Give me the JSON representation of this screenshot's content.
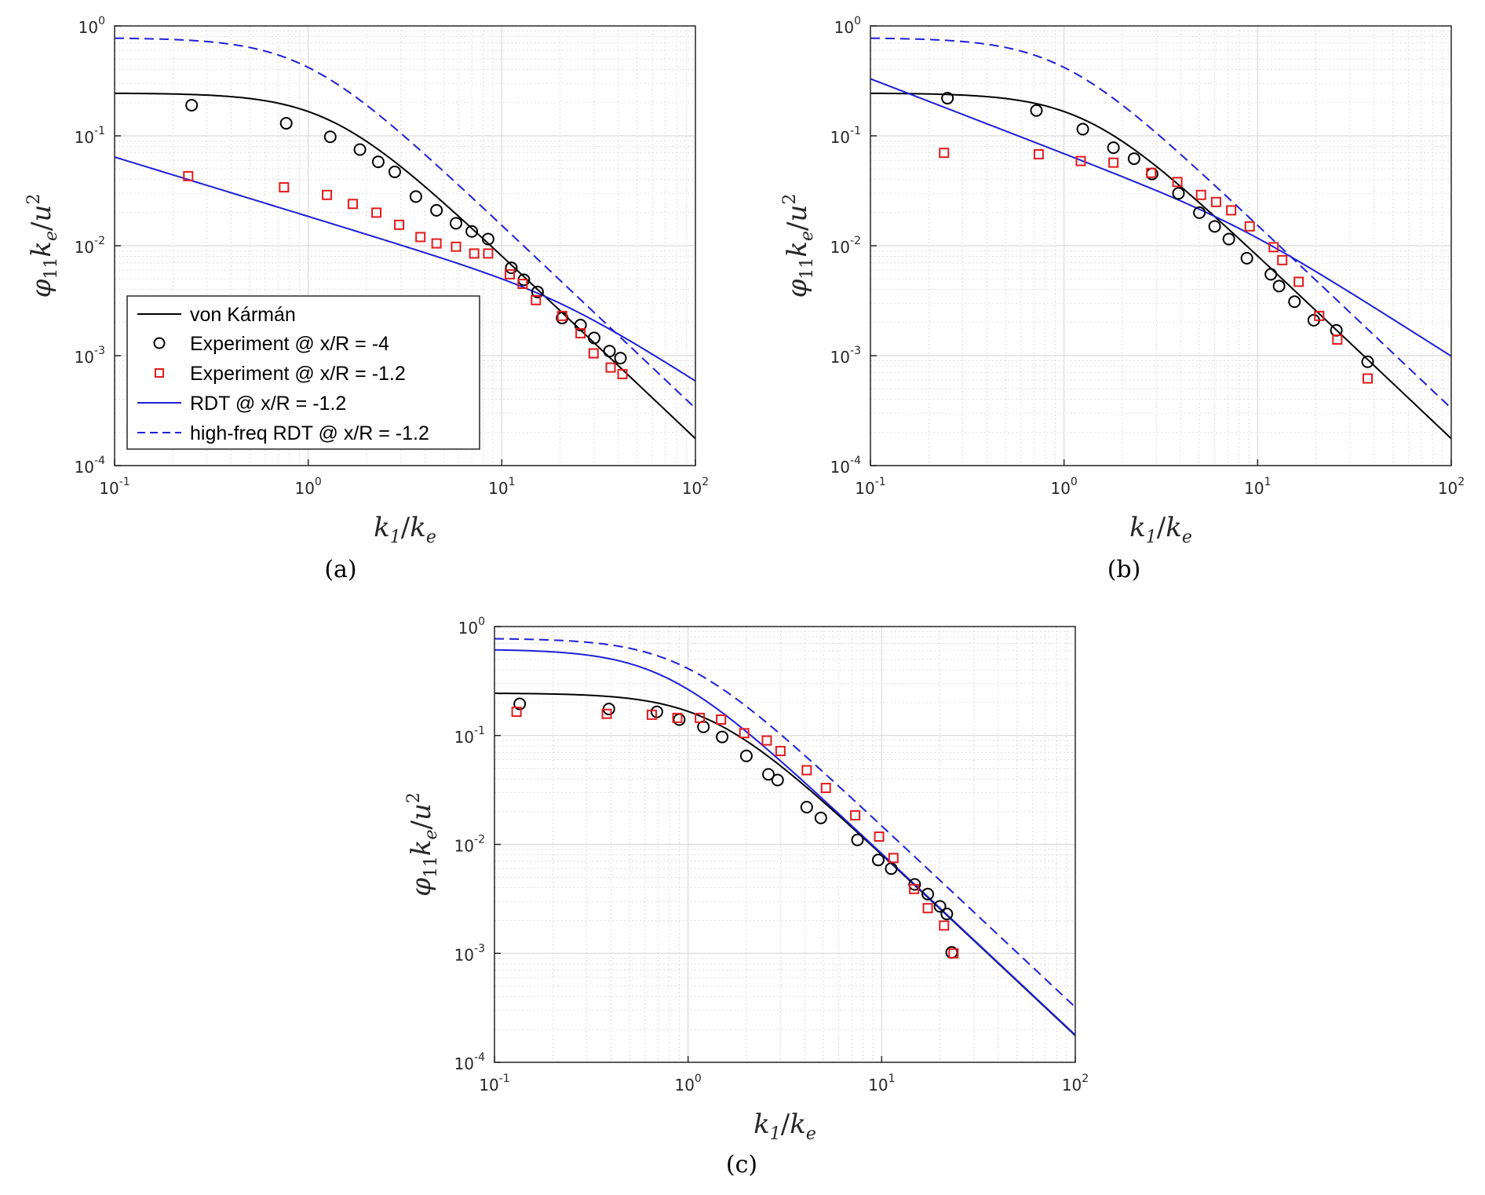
{
  "axis_labels": {
    "x": {
      "main": "k",
      "sub1": "1",
      "slash": "/",
      "main2": "k",
      "sub2": "e"
    },
    "y": {
      "phi": "φ",
      "sub": "11",
      "k": "k",
      "ksub": "e",
      "slash": "/",
      "u": "u",
      "bar": "¯",
      "sup": "2"
    }
  },
  "tick_labels": {
    "x": [
      {
        "base": "10",
        "exp": "-1"
      },
      {
        "base": "10",
        "exp": "0"
      },
      {
        "base": "10",
        "exp": "1"
      },
      {
        "base": "10",
        "exp": "2"
      }
    ],
    "y": [
      {
        "base": "10",
        "exp": "-4"
      },
      {
        "base": "10",
        "exp": "-3"
      },
      {
        "base": "10",
        "exp": "-2"
      },
      {
        "base": "10",
        "exp": "-1"
      },
      {
        "base": "10",
        "exp": "0"
      }
    ]
  },
  "legend": [
    {
      "label": "von Kármán",
      "style": "black-line"
    },
    {
      "label": "Experiment @ x/R = -4",
      "style": "black-circle"
    },
    {
      "label": "Experiment @ x/R = -1.2",
      "style": "red-square"
    },
    {
      "label": "RDT @ x/R = -1.2",
      "style": "blue-line"
    },
    {
      "label": "high-freq RDT @ x/R = -1.2",
      "style": "blue-dashed"
    }
  ],
  "colors": {
    "von_karman": "#000000",
    "experiment_x4": "#000000",
    "experiment_x12": "#e41a1c",
    "rdt": "#1f1fd8",
    "high_freq_rdt": "#1f1fd8",
    "grid": "#c8c8c8"
  },
  "chart_data": [
    {
      "panel": "(a)",
      "type": "line",
      "xlabel": "k1/ke",
      "ylabel": "φ11 ke/ū²",
      "xscale": "log",
      "yscale": "log",
      "xlim": [
        0.1,
        100
      ],
      "ylim": [
        0.0001,
        1
      ],
      "grid": true,
      "legend_position": "bottom-left",
      "series": [
        {
          "name": "Experiment @ x/R = -4",
          "marker": "circle",
          "x": [
            0.25,
            0.77,
            1.3,
            1.85,
            2.3,
            2.8,
            3.6,
            4.6,
            5.8,
            7.0,
            8.5,
            11.2,
            13.0,
            15.3,
            20.5,
            25.5,
            30.0,
            36.0,
            41.0
          ],
          "y": [
            0.19,
            0.13,
            0.098,
            0.075,
            0.058,
            0.047,
            0.028,
            0.021,
            0.016,
            0.0135,
            0.0115,
            0.0063,
            0.0049,
            0.0038,
            0.0022,
            0.0019,
            0.00145,
            0.0011,
            0.00095
          ]
        },
        {
          "name": "Experiment @ x/R = -1.2",
          "marker": "square",
          "x": [
            0.24,
            0.75,
            1.25,
            1.7,
            2.25,
            2.95,
            3.8,
            4.6,
            5.8,
            7.2,
            8.5,
            11.0,
            12.8,
            15.0,
            20.5,
            25.5,
            29.8,
            36.5,
            42.0
          ],
          "y": [
            0.043,
            0.034,
            0.029,
            0.024,
            0.02,
            0.0155,
            0.012,
            0.0105,
            0.0098,
            0.0085,
            0.0085,
            0.0055,
            0.0045,
            0.0032,
            0.0023,
            0.0016,
            0.00105,
            0.00078,
            0.00068
          ]
        }
      ],
      "curves": [
        "von_karman",
        "rdt_a",
        "high_freq_a"
      ]
    },
    {
      "panel": "(b)",
      "type": "line",
      "xlabel": "k1/ke",
      "ylabel": "φ11 ke/ū²",
      "xscale": "log",
      "yscale": "log",
      "xlim": [
        0.1,
        100
      ],
      "ylim": [
        0.0001,
        1
      ],
      "grid": true,
      "series": [
        {
          "name": "Experiment @ x/R = -4",
          "marker": "circle",
          "x": [
            0.25,
            0.72,
            1.25,
            1.8,
            2.3,
            2.85,
            3.9,
            5.0,
            6.0,
            7.1,
            8.8,
            11.7,
            12.9,
            15.5,
            19.5,
            25.5,
            37.0
          ],
          "y": [
            0.22,
            0.17,
            0.115,
            0.078,
            0.062,
            0.045,
            0.03,
            0.02,
            0.015,
            0.0115,
            0.0077,
            0.0055,
            0.0043,
            0.0031,
            0.0021,
            0.0017,
            0.00088
          ]
        },
        {
          "name": "Experiment @ x/R = -1.2",
          "marker": "square",
          "x": [
            0.24,
            0.74,
            1.22,
            1.8,
            2.82,
            3.85,
            5.1,
            6.1,
            7.3,
            9.1,
            12.1,
            13.4,
            16.3,
            20.8,
            25.8,
            37.0
          ],
          "y": [
            0.07,
            0.068,
            0.059,
            0.057,
            0.046,
            0.038,
            0.029,
            0.025,
            0.021,
            0.015,
            0.0097,
            0.0074,
            0.0047,
            0.0023,
            0.0014,
            0.00062
          ]
        }
      ],
      "curves": [
        "von_karman",
        "rdt_b",
        "high_freq_b"
      ]
    },
    {
      "panel": "(c)",
      "type": "line",
      "xlabel": "k1/ke",
      "ylabel": "φ11 ke/ū²",
      "xscale": "log",
      "yscale": "log",
      "xlim": [
        0.1,
        100
      ],
      "ylim": [
        0.0001,
        1
      ],
      "grid": true,
      "series": [
        {
          "name": "Experiment @ x/R = -4",
          "marker": "circle",
          "x": [
            0.135,
            0.39,
            0.69,
            0.9,
            1.2,
            1.5,
            2.0,
            2.6,
            2.9,
            4.1,
            4.85,
            7.5,
            9.6,
            11.2,
            14.8,
            17.3,
            20.0,
            21.7,
            23.0
          ],
          "y": [
            0.195,
            0.175,
            0.165,
            0.14,
            0.12,
            0.097,
            0.065,
            0.044,
            0.039,
            0.022,
            0.0175,
            0.011,
            0.0072,
            0.006,
            0.0043,
            0.0035,
            0.0027,
            0.0023,
            0.00102
          ]
        },
        {
          "name": "Experiment @ x/R = -1.2",
          "marker": "square",
          "x": [
            0.13,
            0.38,
            0.65,
            0.88,
            1.15,
            1.48,
            1.95,
            2.55,
            3.0,
            4.1,
            5.15,
            7.3,
            9.7,
            11.5,
            14.7,
            17.3,
            21.0,
            23.5
          ],
          "y": [
            0.165,
            0.158,
            0.155,
            0.145,
            0.145,
            0.14,
            0.105,
            0.09,
            0.072,
            0.048,
            0.033,
            0.0185,
            0.0118,
            0.0075,
            0.0039,
            0.0026,
            0.0018,
            0.001
          ]
        }
      ],
      "curves": [
        "von_karman",
        "rdt_c",
        "high_freq_c"
      ]
    }
  ],
  "captions": [
    "(a)",
    "(b)",
    "(c)"
  ]
}
